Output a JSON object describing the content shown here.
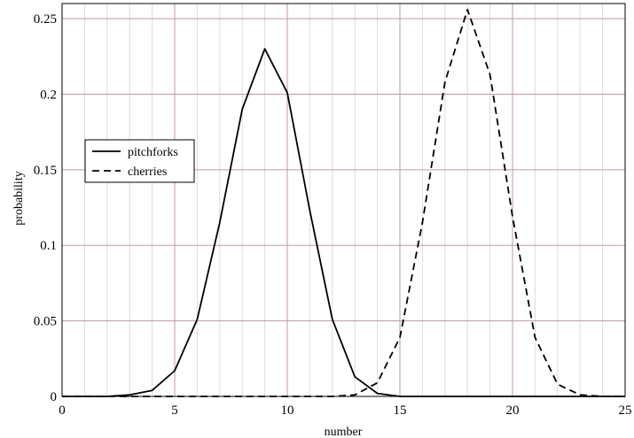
{
  "chart_data": {
    "type": "line",
    "xlabel": "number",
    "ylabel": "probability",
    "xlim": [
      0,
      25
    ],
    "ylim": [
      0,
      0.26
    ],
    "x_ticks": [
      0,
      5,
      10,
      15,
      20,
      25
    ],
    "y_ticks": [
      0,
      0.05,
      0.1,
      0.15,
      0.2,
      0.25
    ],
    "x_tick_labels": [
      "0",
      "5",
      "10",
      "15",
      "20",
      "25"
    ],
    "y_tick_labels": [
      "0",
      "0.05",
      "0.1",
      "0.15",
      "0.2",
      "0.25"
    ],
    "grid": true,
    "minor_x_step": 1,
    "legend_position": "left, middle-upper",
    "grid_major_color": "#c09aa0",
    "grid_minor_color": "#dcdcdc",
    "series": [
      {
        "name": "pitchforks",
        "line_style": "solid",
        "color": "#000000",
        "x": [
          0,
          1,
          2,
          3,
          4,
          5,
          6,
          7,
          8,
          9,
          10,
          11,
          12,
          13,
          14,
          15,
          16,
          17,
          18,
          19,
          20,
          21,
          22,
          23,
          24,
          25
        ],
        "y": [
          0,
          0,
          0,
          0.001,
          0.004,
          0.017,
          0.051,
          0.115,
          0.19,
          0.23,
          0.201,
          0.123,
          0.051,
          0.013,
          0.002,
          0,
          0,
          0,
          0,
          0,
          0,
          0,
          0,
          0,
          0,
          0
        ]
      },
      {
        "name": "cherries",
        "line_style": "dashed",
        "color": "#000000",
        "x": [
          0,
          1,
          2,
          3,
          4,
          5,
          6,
          7,
          8,
          9,
          10,
          11,
          12,
          13,
          14,
          15,
          16,
          17,
          18,
          19,
          20,
          21,
          22,
          23,
          24,
          25
        ],
        "y": [
          0,
          0,
          0,
          0,
          0,
          0,
          0,
          0,
          0,
          0,
          0,
          0,
          0,
          0.001,
          0.009,
          0.039,
          0.115,
          0.208,
          0.256,
          0.213,
          0.119,
          0.039,
          0.008,
          0.001,
          0,
          0
        ]
      }
    ]
  }
}
